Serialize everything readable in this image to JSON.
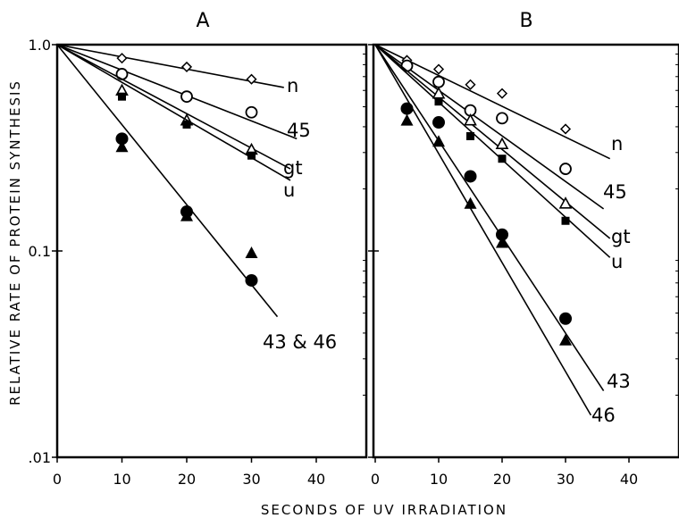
{
  "chart_data": {
    "type": "scatter",
    "ylabel": "RELATIVE RATE OF PROTEIN SYNTHESIS",
    "xlabel": "SECONDS OF UV IRRADIATION",
    "yscale": "log",
    "ylim": [
      0.01,
      1.0
    ],
    "xlim": [
      0,
      40
    ],
    "x_ticks": [
      "0",
      "10",
      "20",
      "30",
      "40"
    ],
    "y_ticks": [
      "1.0",
      "0.1",
      ".01"
    ],
    "panels": [
      {
        "title": "A",
        "series": [
          {
            "name": "n",
            "marker": "diamond-open",
            "x": [
              0,
              10,
              20,
              30
            ],
            "y": [
              1.0,
              0.86,
              0.78,
              0.68
            ],
            "line_x": [
              0,
              35
            ],
            "line_y": [
              1.0,
              0.62
            ]
          },
          {
            "name": "45",
            "marker": "circle-open",
            "x": [
              10,
              20,
              30
            ],
            "y": [
              0.72,
              0.56,
              0.47
            ],
            "line_x": [
              0,
              37
            ],
            "line_y": [
              1.0,
              0.35
            ]
          },
          {
            "name": "gt",
            "marker": "triangle-open",
            "x": [
              10,
              20,
              30
            ],
            "y": [
              0.6,
              0.43,
              0.31
            ],
            "line_x": [
              0,
              36
            ],
            "line_y": [
              1.0,
              0.25
            ]
          },
          {
            "name": "u",
            "marker": "square-filled",
            "x": [
              10,
              20,
              30
            ],
            "y": [
              0.56,
              0.41,
              0.29
            ],
            "line_x": [
              0,
              36
            ],
            "line_y": [
              1.0,
              0.22
            ]
          },
          {
            "name": "43 & 46",
            "marker": "circle-filled",
            "x": [
              10,
              20,
              30
            ],
            "y": [
              0.35,
              0.155,
              0.072
            ],
            "line_x": [
              0,
              34
            ],
            "line_y": [
              1.0,
              0.048
            ]
          },
          {
            "name": "",
            "marker": "triangle-filled",
            "x": [
              10,
              20,
              30
            ],
            "y": [
              0.32,
              0.148,
              0.098
            ],
            "line_x": [],
            "line_y": []
          }
        ]
      },
      {
        "title": "B",
        "series": [
          {
            "name": "n",
            "marker": "diamond-open",
            "x": [
              0,
              5,
              10,
              15,
              20,
              30
            ],
            "y": [
              1.0,
              0.84,
              0.76,
              0.64,
              0.58,
              0.39
            ],
            "line_x": [
              0,
              37
            ],
            "line_y": [
              1.0,
              0.28
            ]
          },
          {
            "name": "45",
            "marker": "circle-open",
            "x": [
              0,
              5,
              10,
              15,
              20,
              30
            ],
            "y": [
              1.0,
              0.79,
              0.66,
              0.48,
              0.44,
              0.25
            ],
            "line_x": [
              0,
              36
            ],
            "line_y": [
              1.0,
              0.16
            ]
          },
          {
            "name": "gt",
            "marker": "triangle-open",
            "x": [
              0,
              10,
              15,
              20,
              30
            ],
            "y": [
              1.0,
              0.58,
              0.43,
              0.33,
              0.17
            ],
            "line_x": [
              0,
              37
            ],
            "line_y": [
              1.0,
              0.115
            ]
          },
          {
            "name": "u",
            "marker": "square-filled",
            "x": [
              0,
              10,
              15,
              20,
              30
            ],
            "y": [
              1.0,
              0.53,
              0.36,
              0.28,
              0.14
            ],
            "line_x": [
              0,
              37
            ],
            "line_y": [
              1.0,
              0.093
            ]
          },
          {
            "name": "43",
            "marker": "circle-filled",
            "x": [
              0,
              5,
              10,
              15,
              20,
              30
            ],
            "y": [
              1.0,
              0.49,
              0.42,
              0.23,
              0.12,
              0.047
            ],
            "line_x": [
              0,
              36
            ],
            "line_y": [
              1.0,
              0.021
            ]
          },
          {
            "name": "46",
            "marker": "triangle-filled",
            "x": [
              0,
              5,
              10,
              15,
              20,
              30
            ],
            "y": [
              1.0,
              0.43,
              0.34,
              0.17,
              0.11,
              0.037
            ],
            "line_x": [
              0,
              34
            ],
            "line_y": [
              1.0,
              0.016
            ]
          }
        ]
      }
    ]
  }
}
